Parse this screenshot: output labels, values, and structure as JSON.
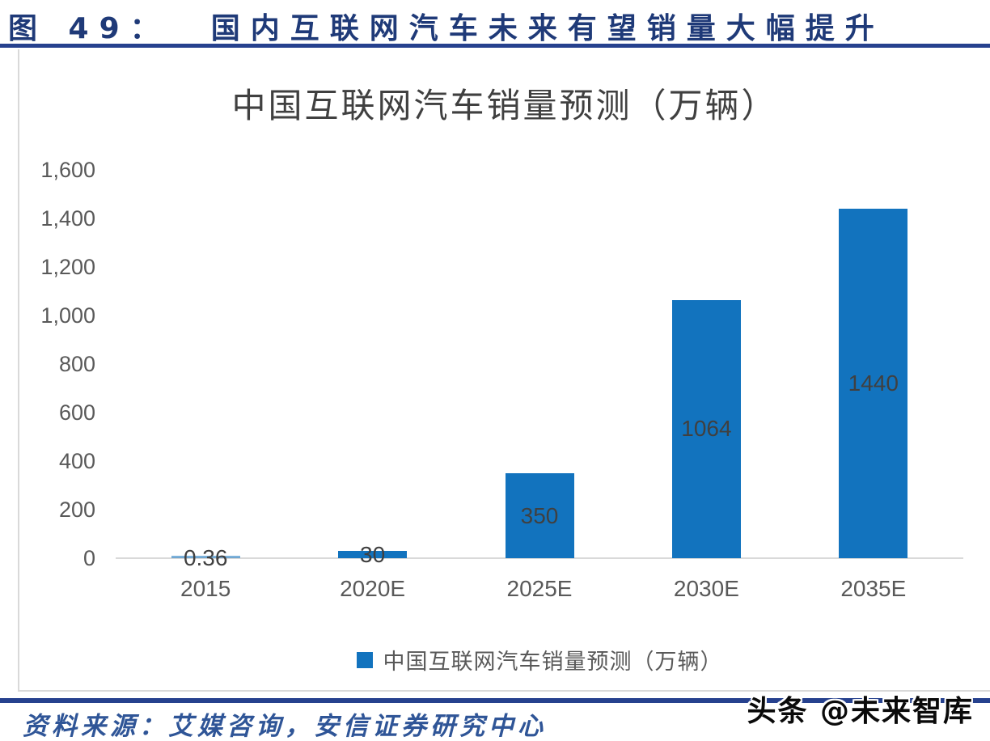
{
  "figure": {
    "caption": "图 49：  国内互联网汽车未来有望销量大幅提升"
  },
  "source_line": "资料来源：艾媒咨询，安信证券研究中心",
  "watermark": "头条 @未来智库",
  "colors": {
    "bar": "#1273BE",
    "rule_navy": "#26418E",
    "caption_navy": "#1F3A78",
    "source_blue": "#2F5597",
    "axis_gray": "#D9D9D9",
    "tick_label_gray": "#595959",
    "data_label_gray": "#404040"
  },
  "chart_data": {
    "type": "bar",
    "title": "中国互联网汽车销量预测（万辆）",
    "categories": [
      "2015",
      "2020E",
      "2025E",
      "2030E",
      "2035E"
    ],
    "values": [
      0.36,
      30,
      350,
      1064,
      1440
    ],
    "data_labels": [
      "0.36",
      "30",
      "350",
      "1064",
      "1440"
    ],
    "xlabel": "",
    "ylabel": "",
    "ylim": [
      0,
      1600
    ],
    "ytick_step": 200,
    "ytick_labels": [
      "1,600",
      "1,400",
      "1,200",
      "1,000",
      "800",
      "600",
      "400",
      "200",
      "0"
    ],
    "grid": false,
    "legend": {
      "position": "bottom",
      "entries": [
        "中国互联网汽车销量预测（万辆）"
      ]
    }
  }
}
